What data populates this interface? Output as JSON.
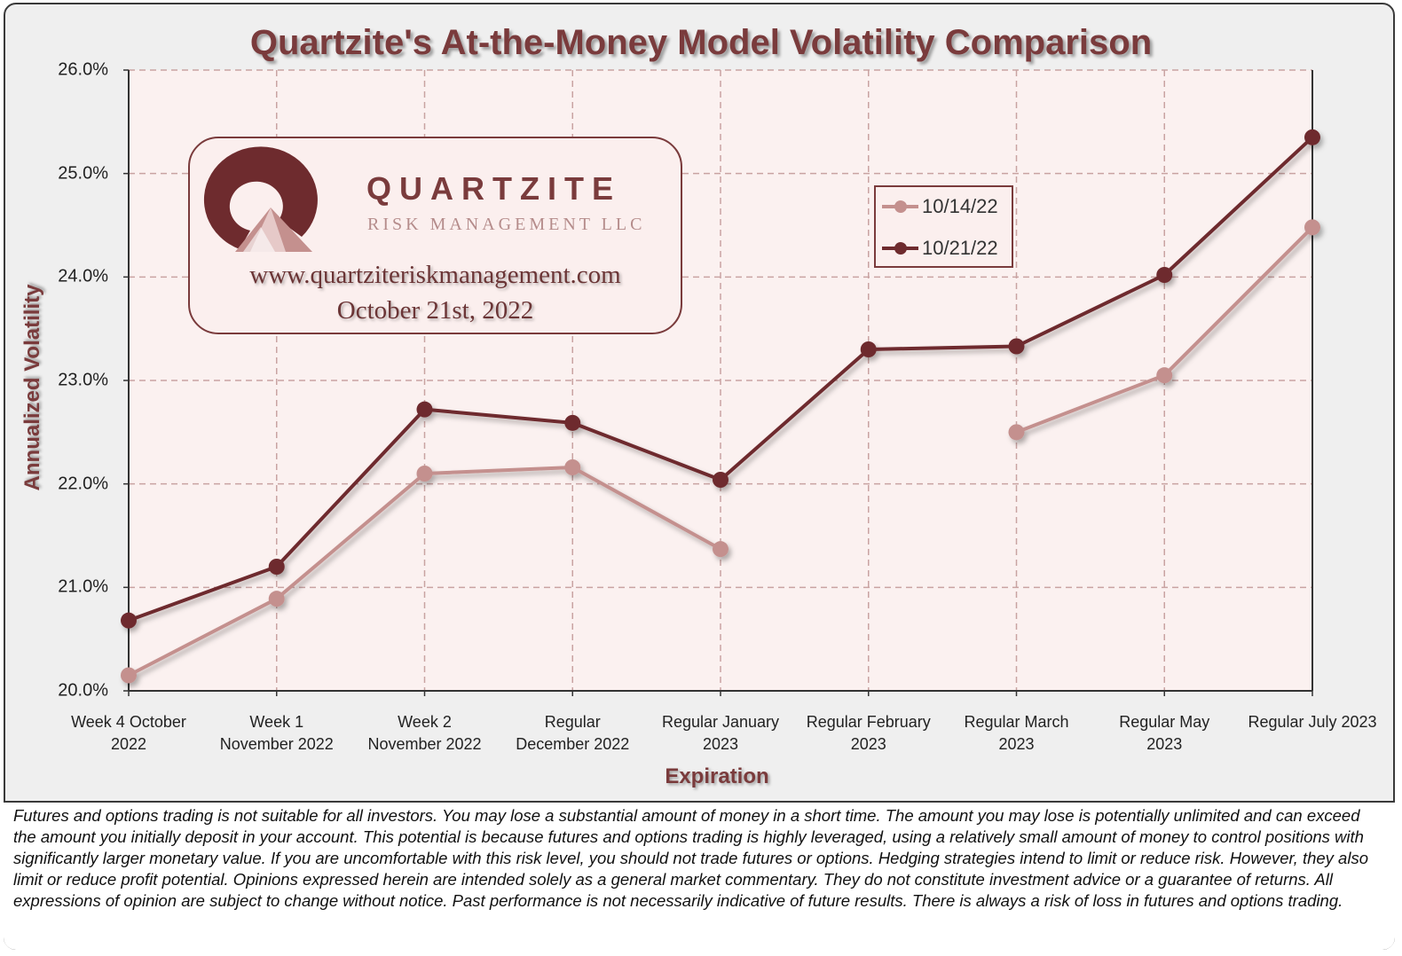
{
  "chart_data": {
    "type": "line",
    "title": "Quartzite's At-the-Money Model Volatility Comparison",
    "xlabel": "Expiration",
    "ylabel": "Annualized Volatility",
    "ylim": [
      20.0,
      26.0
    ],
    "yticks": [
      "20.0%",
      "21.0%",
      "22.0%",
      "23.0%",
      "24.0%",
      "25.0%",
      "26.0%"
    ],
    "y_tick_values": [
      20,
      21,
      22,
      23,
      24,
      25,
      26
    ],
    "grid": true,
    "legend_position": "upper-right",
    "categories": [
      "Week 4 October 2022",
      "Week 1 November 2022",
      "Week 2 November 2022",
      "Regular December 2022",
      "Regular January 2023",
      "Regular February 2023",
      "Regular March 2023",
      "Regular May 2023",
      "Regular July 2023"
    ],
    "category_lines": [
      [
        "Week 4 October",
        "2022"
      ],
      [
        "Week 1",
        "November 2022"
      ],
      [
        "Week 2",
        "November 2022"
      ],
      [
        "Regular",
        "December 2022"
      ],
      [
        "Regular January",
        "2023"
      ],
      [
        "Regular February",
        "2023"
      ],
      [
        "Regular March",
        "2023"
      ],
      [
        "Regular May",
        "2023"
      ],
      [
        "Regular July 2023",
        ""
      ]
    ],
    "series": [
      {
        "name": "10/14/22",
        "color": "#c4908e",
        "values": [
          20.15,
          20.89,
          22.1,
          22.16,
          21.37,
          null,
          22.5,
          23.05,
          24.48
        ]
      },
      {
        "name": "10/21/22",
        "color": "#6e2b2e",
        "values": [
          20.68,
          21.2,
          22.72,
          22.59,
          22.04,
          23.3,
          23.33,
          24.02,
          25.35
        ]
      }
    ]
  },
  "logo": {
    "wordmark": "QUARTZITE",
    "subtitle": "RISK MANAGEMENT LLC",
    "url": "www.quartziteriskmanagement.com",
    "date": "October 21st, 2022"
  },
  "disclaimer": "Futures and options trading is not suitable for all investors. You may lose a substantial amount of money in a short time. The amount you may lose is potentially unlimited and can exceed the amount you initially deposit in your account. This potential is because futures and options trading is highly leveraged, using a relatively small amount of money to control positions with significantly larger monetary value. If you are uncomfortable with this risk level, you should not trade futures or options. Hedging strategies intend to limit or reduce risk. However, they also limit or reduce profit potential. Opinions expressed herein are intended solely as a general market commentary. They do not constitute investment advice or a guarantee of returns. All expressions of opinion are subject to change without notice. Past performance is not necessarily indicative of future results. There is always a risk of loss in futures and options trading.",
  "colors": {
    "accent": "#7a3b3c",
    "plot_background": "#fbf1f0",
    "grid": "#c9a3a2"
  }
}
